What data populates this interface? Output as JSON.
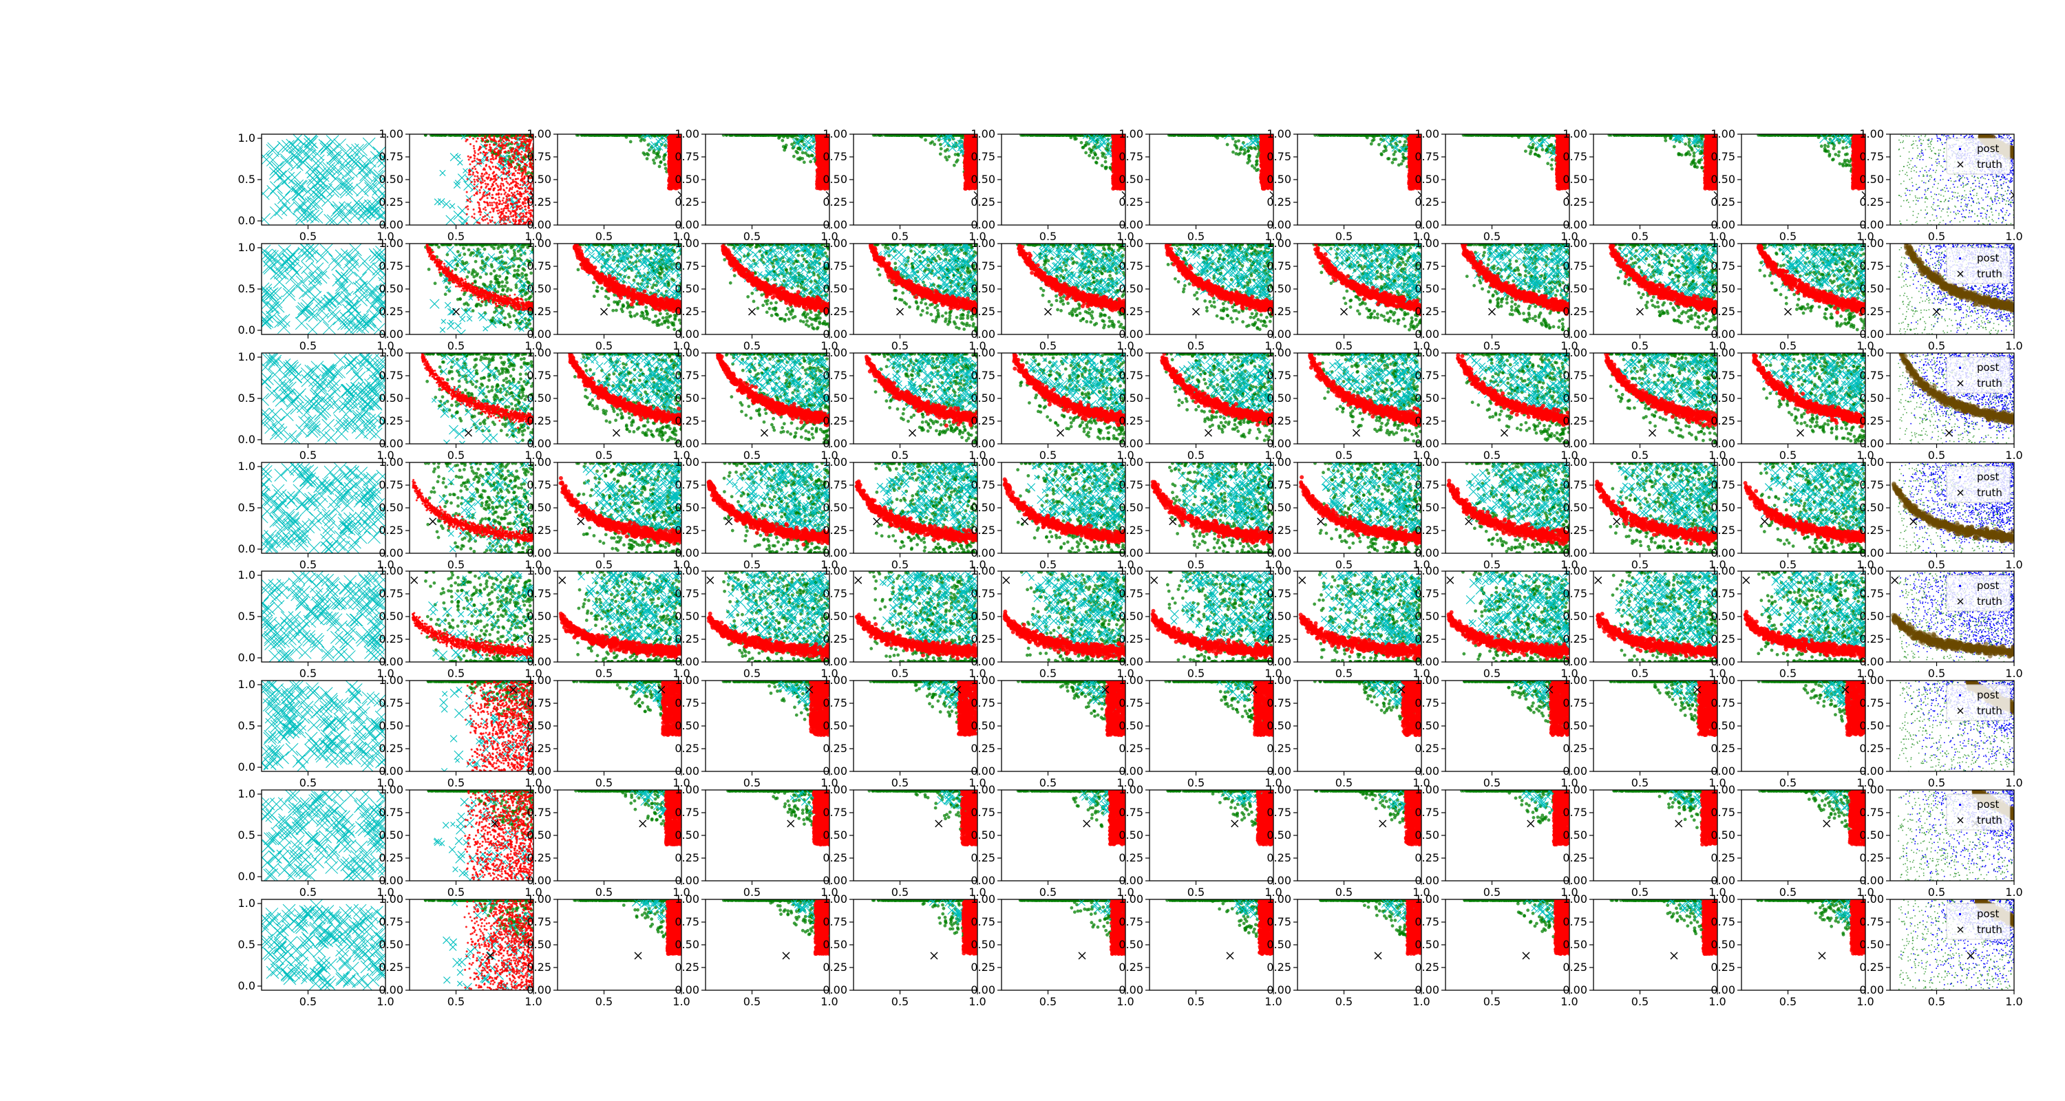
{
  "chart_data": {
    "type": "scatter",
    "grid": {
      "rows": 8,
      "cols": 12
    },
    "grid_lines": false,
    "colors": {
      "prior": "#00bfbf",
      "samples": "#008000",
      "proposal": "#ff0000",
      "posterior": "#0000ff",
      "truth": "#000000"
    },
    "first_column": {
      "xlim": [
        0.2,
        1.0
      ],
      "ylim": [
        -0.05,
        1.05
      ],
      "xticks": [
        "0.5",
        "1.0"
      ],
      "yticks": [
        "0.0",
        "0.5",
        "1.0"
      ]
    },
    "other_columns": {
      "xlim": [
        0.2,
        1.0
      ],
      "ylim": [
        0.0,
        1.0
      ],
      "xticks": [
        "0.5",
        "1.0"
      ],
      "yticks": [
        "0.00",
        "0.25",
        "0.50",
        "0.75",
        "1.00"
      ]
    },
    "legend": {
      "entries": [
        "post",
        "truth"
      ],
      "placement": "upper right",
      "columns": [
        12
      ]
    },
    "rows": [
      {
        "truth": [
          1.0,
          0.33
        ],
        "curve_k": 0.78,
        "front": 0.92
      },
      {
        "truth": [
          0.5,
          0.25
        ],
        "curve_k": 0.3,
        "front": 0.62
      },
      {
        "truth": [
          0.58,
          0.12
        ],
        "curve_k": 0.27,
        "front": 0.55
      },
      {
        "truth": [
          0.35,
          0.35
        ],
        "curve_k": 0.17,
        "front": 0.42
      },
      {
        "truth": [
          0.23,
          0.9
        ],
        "curve_k": 0.11,
        "front": 0.36
      },
      {
        "truth": [
          0.87,
          0.9
        ],
        "curve_k": 0.7,
        "front": 0.88
      },
      {
        "truth": [
          0.75,
          0.63
        ],
        "curve_k": 0.74,
        "front": 0.9
      },
      {
        "truth": [
          0.72,
          0.38
        ],
        "curve_k": 0.76,
        "front": 0.91
      }
    ]
  }
}
